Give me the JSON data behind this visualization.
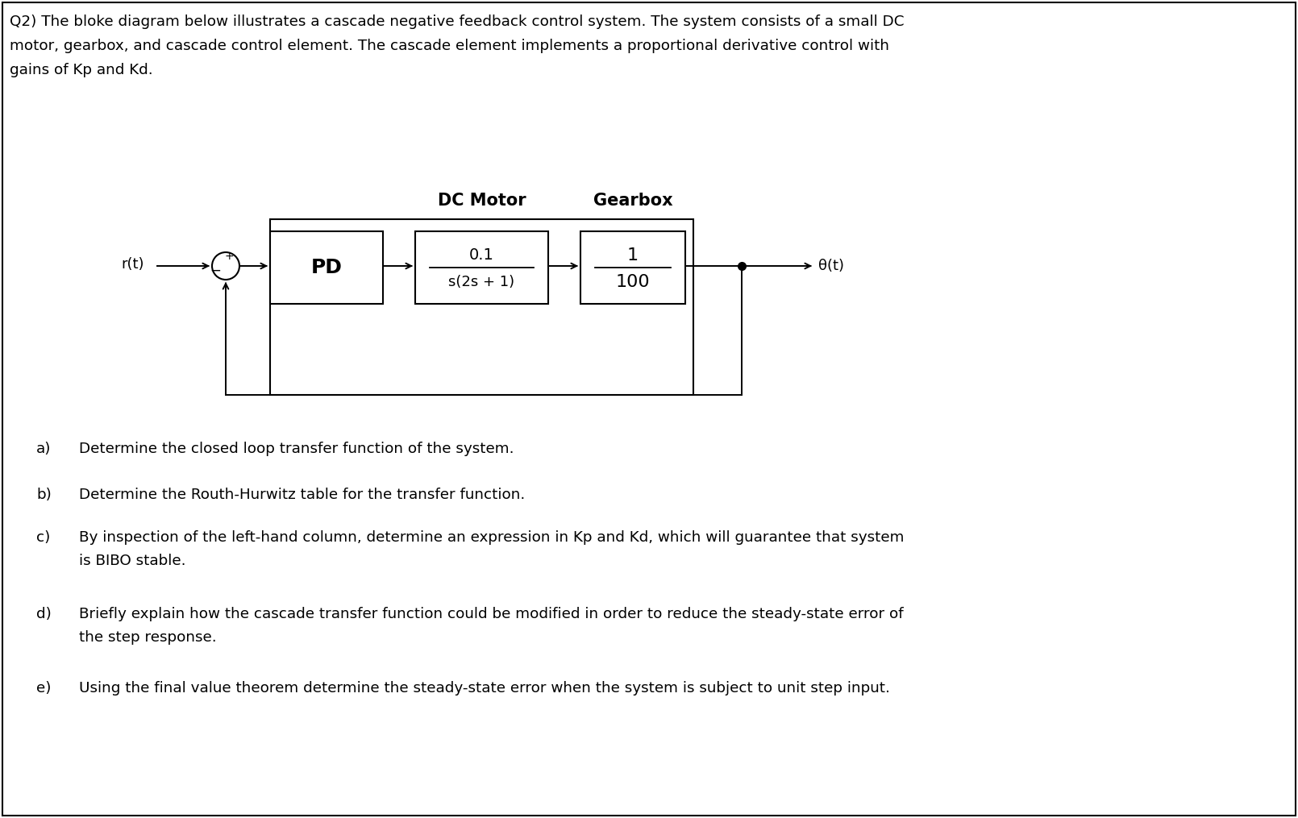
{
  "background_color": "#ffffff",
  "border_color": "#000000",
  "text_color": "#000000",
  "header_text": [
    "Q2) The bloke diagram below illustrates a cascade negative feedback control system. The system consists of a small DC",
    "motor, gearbox, and cascade control element. The cascade element implements a proportional derivative control with",
    "gains of Kp and Kd."
  ],
  "questions": [
    {
      "label": "a)",
      "text": "Determine the closed loop transfer function of the system."
    },
    {
      "label": "b)",
      "text": "Determine the Routh-Hurwitz table for the transfer function."
    },
    {
      "label": "c)",
      "text": "By inspection of the left-hand column, determine an expression in Kp and Kd, which will guarantee that system",
      "text2": "is BIBO stable."
    },
    {
      "label": "d)",
      "text": "Briefly explain how the cascade transfer function could be modified in order to reduce the steady-state error of",
      "text2": "the step response."
    },
    {
      "label": "e)",
      "text": "Using the final value theorem determine the steady-state error when the system is subject to unit step input."
    }
  ],
  "diagram": {
    "rt_label": "r(t)",
    "theta_label": "θ(t)",
    "plus_label": "+",
    "minus_label": "−",
    "pd_label": "PD",
    "motor_label": "DC Motor",
    "gearbox_label": "Gearbox",
    "motor_tf_num": "0.1",
    "motor_tf_den": "s(2s + 1)",
    "gearbox_tf_num": "1",
    "gearbox_tf_den": "100"
  }
}
